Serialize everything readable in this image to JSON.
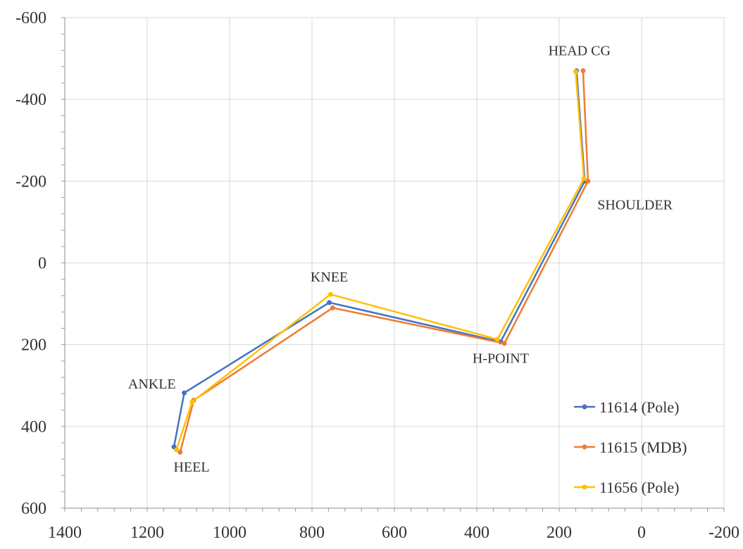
{
  "chart_data": {
    "type": "line",
    "xlim": [
      1400,
      -200
    ],
    "ylim": [
      -600,
      600
    ],
    "x_ticks": [
      1400,
      1200,
      1000,
      800,
      600,
      400,
      200,
      0,
      -200
    ],
    "y_ticks": [
      -600,
      -400,
      -200,
      0,
      200,
      400,
      600
    ],
    "x_tick_labels": [
      "1400",
      "1200",
      "1000",
      "800",
      "600",
      "400",
      "200",
      "0",
      "-200"
    ],
    "y_tick_labels": [
      "-600",
      "-400",
      "-200",
      "0",
      "200",
      "400",
      "600"
    ],
    "grid": true,
    "legend_position": "bottom-right",
    "point_labels": [
      "HEAD CG",
      "SHOULDER",
      "KNEE",
      "H-POINT",
      "ANKLE",
      "HEEL"
    ],
    "series": [
      {
        "name": "11614 (Pole)",
        "color": "#4472C4",
        "points": [
          {
            "label": "HEAD CG",
            "x": 158,
            "y": -470
          },
          {
            "label": "SHOULDER",
            "x": 138,
            "y": -200
          },
          {
            "label": "H-POINT",
            "x": 342,
            "y": 193
          },
          {
            "label": "KNEE",
            "x": 758,
            "y": 97
          },
          {
            "label": "ANKLE",
            "x": 1110,
            "y": 318
          },
          {
            "label": "HEEL",
            "x": 1135,
            "y": 450
          }
        ]
      },
      {
        "name": "11615 (MDB)",
        "color": "#ED7D31",
        "points": [
          {
            "label": "HEAD CG",
            "x": 142,
            "y": -470
          },
          {
            "label": "SHOULDER",
            "x": 130,
            "y": -200
          },
          {
            "label": "H-POINT",
            "x": 333,
            "y": 197
          },
          {
            "label": "KNEE",
            "x": 750,
            "y": 110
          },
          {
            "label": "ANKLE",
            "x": 1087,
            "y": 336
          },
          {
            "label": "HEEL",
            "x": 1120,
            "y": 463
          }
        ]
      },
      {
        "name": "11656 (Pole)",
        "color": "#FFC000",
        "points": [
          {
            "label": "HEAD CG",
            "x": 160,
            "y": -468
          },
          {
            "label": "SHOULDER",
            "x": 140,
            "y": -206
          },
          {
            "label": "H-POINT",
            "x": 350,
            "y": 187
          },
          {
            "label": "KNEE",
            "x": 755,
            "y": 77
          },
          {
            "label": "ANKLE",
            "x": 1091,
            "y": 340
          },
          {
            "label": "HEEL",
            "x": 1129,
            "y": 457
          }
        ]
      }
    ]
  }
}
